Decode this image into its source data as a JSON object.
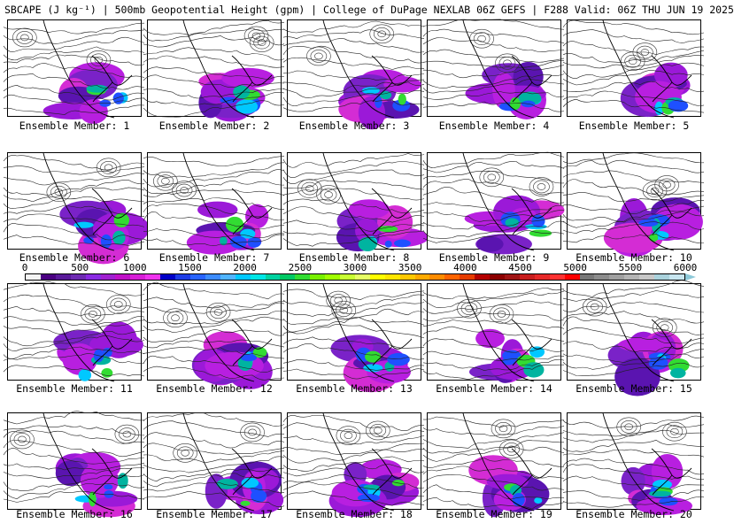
{
  "header": {
    "title": "SBCAPE (J kg⁻¹) | 500mb Geopotential Height (gpm) | College of DuPage NEXLAB 06Z GEFS | F288 Valid: 06Z THU JUN 19 2025"
  },
  "members": [
    {
      "label": "Ensemble Member: 1"
    },
    {
      "label": "Ensemble Member: 2"
    },
    {
      "label": "Ensemble Member: 3"
    },
    {
      "label": "Ensemble Member: 4"
    },
    {
      "label": "Ensemble Member: 5"
    },
    {
      "label": "Ensemble Member: 6"
    },
    {
      "label": "Ensemble Member: 7"
    },
    {
      "label": "Ensemble Member: 8"
    },
    {
      "label": "Ensemble Member: 9"
    },
    {
      "label": "Ensemble Member: 10"
    },
    {
      "label": "Ensemble Member: 11"
    },
    {
      "label": "Ensemble Member: 12"
    },
    {
      "label": "Ensemble Member: 13"
    },
    {
      "label": "Ensemble Member: 14"
    },
    {
      "label": "Ensemble Member: 15"
    },
    {
      "label": "Ensemble Member: 16"
    },
    {
      "label": "Ensemble Member: 17"
    },
    {
      "label": "Ensemble Member: 18"
    },
    {
      "label": "Ensemble Member: 19"
    },
    {
      "label": "Ensemble Member: 20"
    }
  ],
  "colorbar": {
    "ticks": [
      "0",
      "500",
      "1000",
      "1500",
      "2000",
      "2500",
      "3000",
      "3500",
      "4000",
      "4500",
      "5000",
      "5500",
      "6000"
    ],
    "colors": [
      "#f4f4f4",
      "#4b0082",
      "#5a1a9a",
      "#6e2bb3",
      "#8a2be2",
      "#a020d0",
      "#c010c8",
      "#d71ed7",
      "#ee33ee",
      "#0000c8",
      "#1e3ce6",
      "#2864ff",
      "#3c8cff",
      "#50b4ff",
      "#00c8ff",
      "#00e6e6",
      "#00d2a0",
      "#00c864",
      "#32dc32",
      "#78f000",
      "#a0ff00",
      "#c8ff32",
      "#e6ff64",
      "#ffff00",
      "#ffe600",
      "#ffc800",
      "#ffaa00",
      "#ff8c00",
      "#ff6400",
      "#e63c00",
      "#b40000",
      "#8c0000",
      "#a01414",
      "#c81e1e",
      "#e62828",
      "#ff3232",
      "#ff0000",
      "#787878",
      "#8c8c8c",
      "#a0a0a0",
      "#b4b4b4",
      "#c8c8c8",
      "#aad2dc",
      "#c8e6f0"
    ],
    "min_color": "#ffffff",
    "max_color": "#8cc8d8"
  }
}
